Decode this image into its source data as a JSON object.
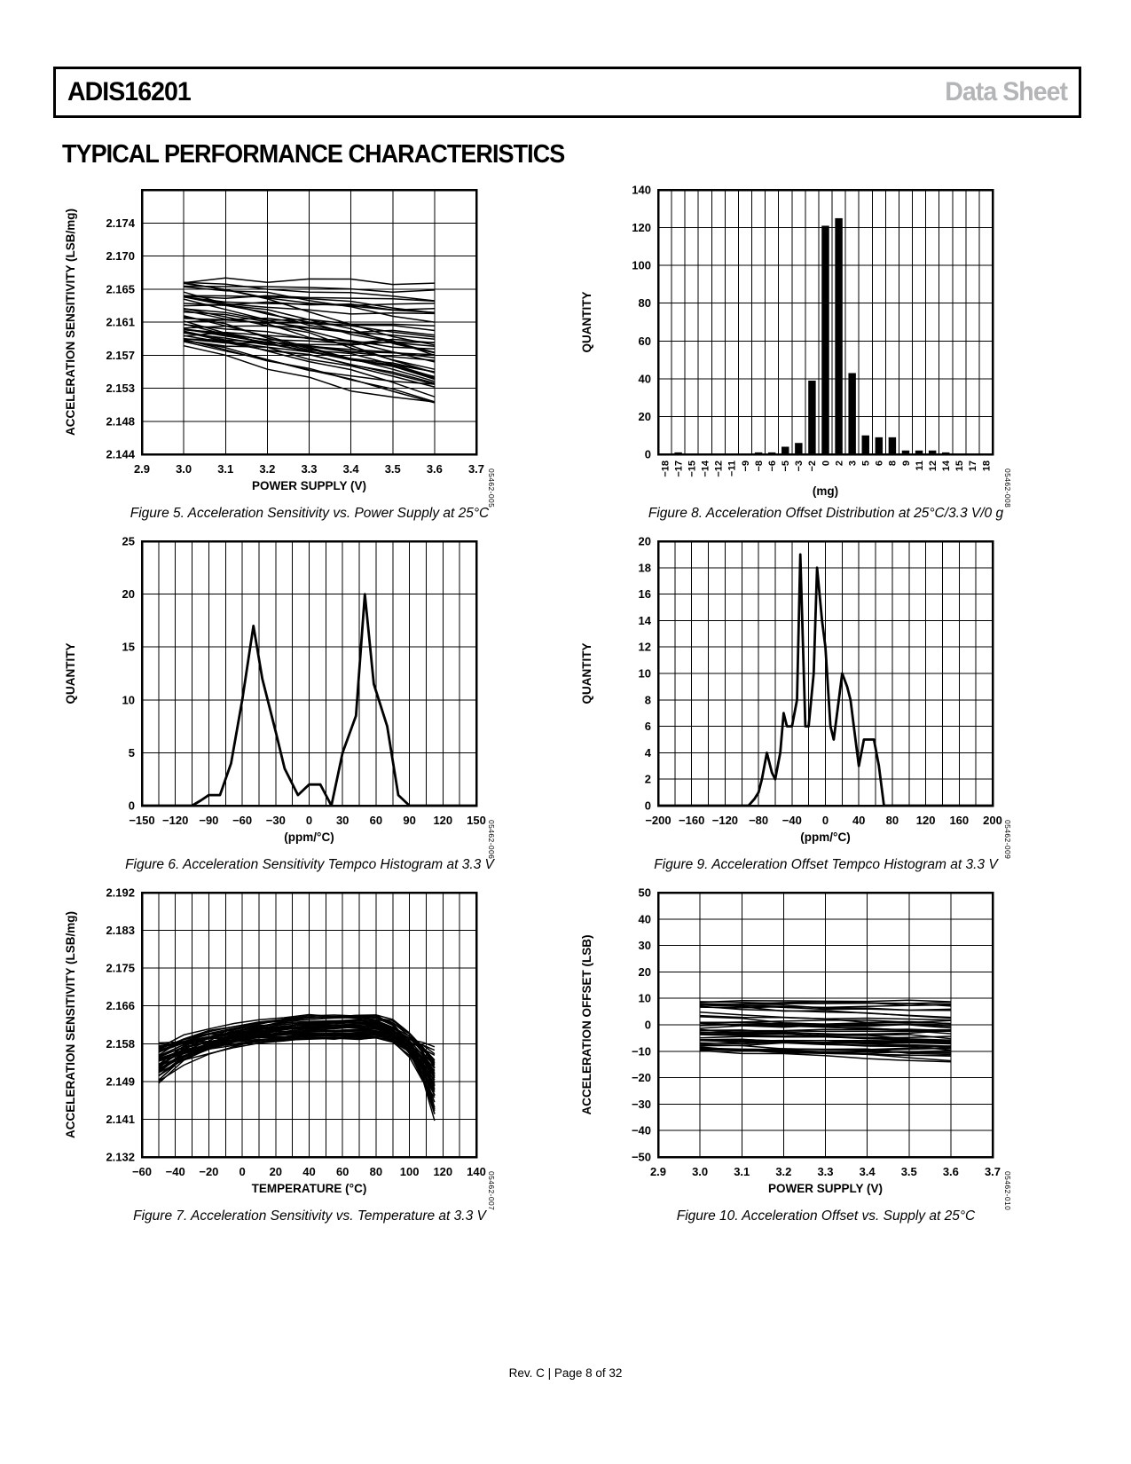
{
  "header": {
    "part": "ADIS16201",
    "doc_type": "Data Sheet"
  },
  "section_title": "TYPICAL PERFORMANCE CHARACTERISTICS",
  "footer": {
    "text": "Rev. C | Page 8 of 32"
  },
  "chart_data": [
    {
      "id": "figure-5",
      "type": "line-bundle",
      "code": "05462-005",
      "caption": "Figure 5. Acceleration Sensitivity vs. Power Supply at 25°C",
      "xlabel": "POWER SUPPLY (V)",
      "ylabel": "ACCELERATION SENSITIVITY (LSB/mg)",
      "xlim": [
        2.9,
        3.7
      ],
      "xticks": [
        2.9,
        3.0,
        3.1,
        3.2,
        3.3,
        3.4,
        3.5,
        3.6,
        3.7
      ],
      "xtick_labels": [
        "2.9",
        "3.0",
        "3.1",
        "3.2",
        "3.3",
        "3.4",
        "3.5",
        "3.6",
        "3.7"
      ],
      "ylim": [
        2.144,
        2.1783
      ],
      "ytick_labels": [
        "2.144",
        "2.148",
        "2.153",
        "2.157",
        "2.161",
        "2.165",
        "2.170",
        "2.174"
      ],
      "y_extra_top": 1,
      "bundle": {
        "kind": "linear",
        "count": 44,
        "seed": 20255,
        "x_start": 3.0,
        "x_end": 3.6,
        "start_range": [
          2.1582,
          2.1668
        ],
        "drop_range": [
          -0.0006,
          0.0088
        ],
        "curve": 0.0009,
        "wobble": 0.00035,
        "segments": 6
      },
      "summary": "About 44 overlapping unit traces falling from ≈2.163 LSB/mg at 3.0 V to ≈2.158 LSB/mg at 3.6 V"
    },
    {
      "id": "figure-8",
      "type": "bar",
      "code": "05462-008",
      "caption": "Figure 8. Acceleration Offset Distribution at 25°C/3.3 V/0 g",
      "xlabel": "(mg)",
      "ylabel": "QUANTITY",
      "categories": [
        "−18",
        "−17",
        "−15",
        "−14",
        "−12",
        "−11",
        "−9",
        "−8",
        "−6",
        "−5",
        "−3",
        "−2",
        "0",
        "2",
        "3",
        "5",
        "6",
        "8",
        "9",
        "11",
        "12",
        "14",
        "15",
        "17",
        "18"
      ],
      "values": [
        0,
        1,
        0,
        0,
        0,
        0,
        0,
        1,
        1,
        4,
        6,
        39,
        121,
        125,
        43,
        10,
        9,
        9,
        2,
        2,
        2,
        1,
        0,
        0,
        0
      ],
      "ylim": [
        0,
        140
      ],
      "yticks": [
        0,
        20,
        40,
        60,
        80,
        100,
        120,
        140
      ],
      "ytick_labels": [
        "0",
        "20",
        "40",
        "60",
        "80",
        "100",
        "120",
        "140"
      ]
    },
    {
      "id": "figure-6",
      "type": "line",
      "code": "05462-006",
      "caption": "Figure 6. Acceleration Sensitivity Tempco Histogram at 3.3 V",
      "xlabel": "(ppm/°C)",
      "ylabel": "QUANTITY",
      "xlim": [
        -150,
        150
      ],
      "xticks": [
        -150,
        -120,
        -90,
        -60,
        -30,
        0,
        30,
        60,
        90,
        120,
        150
      ],
      "xtick_labels": [
        "−150",
        "−120",
        "−90",
        "−60",
        "−30",
        "0",
        "30",
        "60",
        "90",
        "120",
        "150"
      ],
      "x_minor_step": 15,
      "ylim": [
        0,
        25
      ],
      "yticks": [
        0,
        5,
        10,
        15,
        20,
        25
      ],
      "ytick_labels": [
        "0",
        "5",
        "10",
        "15",
        "20",
        "25"
      ],
      "points": [
        [
          -150,
          0
        ],
        [
          -105,
          0
        ],
        [
          -97,
          0.5
        ],
        [
          -90,
          1
        ],
        [
          -80,
          1
        ],
        [
          -70,
          4
        ],
        [
          -60,
          10
        ],
        [
          -50,
          17
        ],
        [
          -42,
          12
        ],
        [
          -30,
          7
        ],
        [
          -22,
          3.5
        ],
        [
          -10,
          1
        ],
        [
          0,
          2
        ],
        [
          10,
          2
        ],
        [
          15,
          1
        ],
        [
          20,
          0
        ],
        [
          30,
          5
        ],
        [
          42,
          8.5
        ],
        [
          50,
          20
        ],
        [
          58,
          11.5
        ],
        [
          70,
          7.5
        ],
        [
          80,
          1
        ],
        [
          90,
          0
        ],
        [
          150,
          0
        ]
      ]
    },
    {
      "id": "figure-9",
      "type": "line",
      "code": "05462-009",
      "caption": "Figure 9. Acceleration Offset Tempco Histogram at 3.3 V",
      "xlabel": "(ppm/°C)",
      "ylabel": "QUANTITY",
      "xlim": [
        -200,
        200
      ],
      "xticks": [
        -200,
        -160,
        -120,
        -80,
        -40,
        0,
        40,
        80,
        120,
        160,
        200
      ],
      "xtick_labels": [
        "−200",
        "−160",
        "−120",
        "−80",
        "−40",
        "0",
        "40",
        "80",
        "120",
        "160",
        "200"
      ],
      "x_minor_step": 20,
      "ylim": [
        0,
        20
      ],
      "yticks": [
        0,
        2,
        4,
        6,
        8,
        10,
        12,
        14,
        16,
        18,
        20
      ],
      "ytick_labels": [
        "0",
        "2",
        "4",
        "6",
        "8",
        "10",
        "12",
        "14",
        "16",
        "18",
        "20"
      ],
      "points": [
        [
          -200,
          0
        ],
        [
          -92,
          0
        ],
        [
          -85,
          0.5
        ],
        [
          -80,
          1
        ],
        [
          -76,
          2
        ],
        [
          -70,
          4
        ],
        [
          -64,
          2.5
        ],
        [
          -60,
          2
        ],
        [
          -54,
          4
        ],
        [
          -50,
          7
        ],
        [
          -46,
          6
        ],
        [
          -40,
          6
        ],
        [
          -34,
          8
        ],
        [
          -30,
          19
        ],
        [
          -24,
          6
        ],
        [
          -20,
          6
        ],
        [
          -14,
          10
        ],
        [
          -10,
          18
        ],
        [
          -4,
          14
        ],
        [
          0,
          12
        ],
        [
          6,
          6
        ],
        [
          10,
          5
        ],
        [
          16,
          8
        ],
        [
          20,
          10
        ],
        [
          26,
          9
        ],
        [
          30,
          8
        ],
        [
          36,
          5
        ],
        [
          40,
          3
        ],
        [
          46,
          5
        ],
        [
          58,
          5
        ],
        [
          64,
          3
        ],
        [
          70,
          0
        ],
        [
          200,
          0
        ]
      ]
    },
    {
      "id": "figure-7",
      "type": "line-bundle",
      "code": "05462-007",
      "caption": "Figure 7. Acceleration Sensitivity vs. Temperature at 3.3 V",
      "xlabel": "TEMPERATURE (°C)",
      "ylabel": "ACCELERATION SENSITIVITY (LSB/mg)",
      "xlim": [
        -60,
        140
      ],
      "xticks": [
        -60,
        -40,
        -20,
        0,
        20,
        40,
        60,
        80,
        100,
        120,
        140
      ],
      "xtick_labels": [
        "−60",
        "−40",
        "−20",
        "0",
        "20",
        "40",
        "60",
        "80",
        "100",
        "120",
        "140"
      ],
      "x_minor_step": 10,
      "ylim": [
        2.132,
        2.192
      ],
      "ytick_labels": [
        "2.132",
        "2.141",
        "2.149",
        "2.158",
        "2.166",
        "2.175",
        "2.183",
        "2.192"
      ],
      "y_extra_top": 0,
      "bundle": {
        "kind": "profile",
        "count": 44,
        "seed": 4242,
        "xs": [
          -50,
          -35,
          -20,
          -5,
          10,
          25,
          40,
          55,
          70,
          80,
          90,
          100,
          108,
          115
        ],
        "profile": [
          0,
          0.38,
          0.58,
          0.74,
          0.86,
          0.94,
          1,
          1,
          1.02,
          1,
          0.86,
          0.5,
          0.05,
          -0.5
        ],
        "start_range": [
          2.1488,
          2.1578
        ],
        "peak_range": [
          2.1588,
          2.1642
        ],
        "tail_range": [
          0.5,
          1.6
        ],
        "wobble": 0.0003
      },
      "summary": "About 44 overlapping unit traces rising from ≈2.149–2.158 LSB/mg at −50°C, peaking ≈2.158–2.164 near +20°C to +80°C, dropping to ≈2.145–2.157 at +115°C"
    },
    {
      "id": "figure-10",
      "type": "line-bundle",
      "code": "05462-010",
      "caption": "Figure 10. Acceleration Offset vs. Supply at 25°C",
      "xlabel": "POWER SUPPLY (V)",
      "ylabel": "ACCELERATION OFFSET (LSB)",
      "xlim": [
        2.9,
        3.7
      ],
      "xticks": [
        2.9,
        3.0,
        3.1,
        3.2,
        3.3,
        3.4,
        3.5,
        3.6,
        3.7
      ],
      "xtick_labels": [
        "2.9",
        "3.0",
        "3.1",
        "3.2",
        "3.3",
        "3.4",
        "3.5",
        "3.6",
        "3.7"
      ],
      "ylim": [
        -50,
        50
      ],
      "yticks": [
        -50,
        -40,
        -30,
        -20,
        -10,
        0,
        10,
        20,
        30,
        40,
        50
      ],
      "ytick_labels": [
        "−50",
        "−40",
        "−30",
        "−20",
        "−10",
        "0",
        "10",
        "20",
        "30",
        "40",
        "50"
      ],
      "bundle": {
        "kind": "linear",
        "count": 46,
        "seed": 9091,
        "x_start": 3.0,
        "x_end": 3.6,
        "start_range": [
          -10,
          9.5
        ],
        "drop_range": [
          -1.5,
          4.5
        ],
        "curve": 0.9,
        "wobble": 0.55,
        "segments": 6
      },
      "summary": "About 46 overlapping unit traces, flat band between ≈ +10 LSB and −10 LSB at 3.0 V, drifting slightly down toward ≈ +6 to −13 LSB at 3.6 V"
    }
  ]
}
